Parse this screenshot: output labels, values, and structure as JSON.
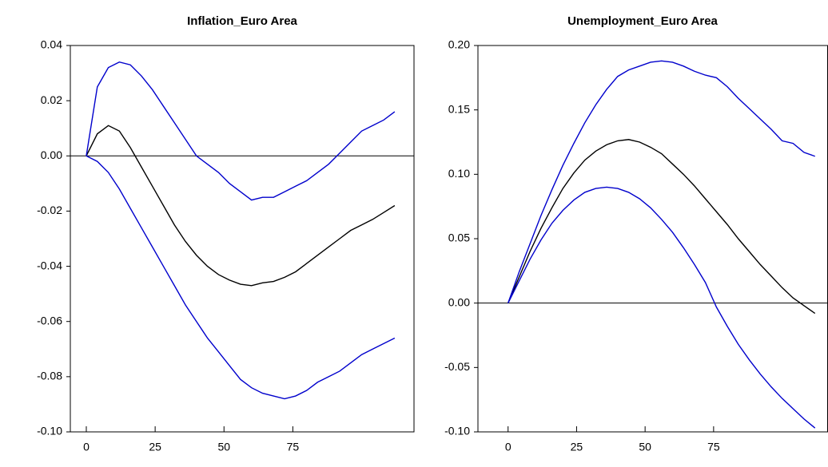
{
  "chart_data": [
    {
      "type": "line",
      "title": "Inflation_Euro Area",
      "x": [
        0,
        4,
        8,
        12,
        16,
        20,
        24,
        28,
        32,
        36,
        40,
        44,
        48,
        52,
        56,
        60,
        64,
        68,
        72,
        76,
        80,
        84,
        88,
        92,
        96,
        100,
        104,
        108,
        112
      ],
      "series": [
        {
          "color": "#000000",
          "values": [
            0,
            0.008,
            0.011,
            0.009,
            0.003,
            -0.004,
            -0.011,
            -0.018,
            -0.025,
            -0.031,
            -0.036,
            -0.04,
            -0.043,
            -0.045,
            -0.0465,
            -0.047,
            -0.046,
            -0.0455,
            -0.044,
            -0.042,
            -0.039,
            -0.036,
            -0.033,
            -0.03,
            -0.027,
            -0.025,
            -0.023,
            -0.0205,
            -0.018
          ]
        },
        {
          "color": "#0000cc",
          "values": [
            0,
            0.025,
            0.032,
            0.034,
            0.033,
            0.029,
            0.024,
            0.018,
            0.012,
            0.006,
            0,
            -0.003,
            -0.006,
            -0.01,
            -0.013,
            -0.016,
            -0.015,
            -0.015,
            -0.013,
            -0.011,
            -0.009,
            -0.006,
            -0.003,
            0.001,
            0.005,
            0.009,
            0.011,
            0.013,
            0.016
          ]
        },
        {
          "color": "#0000cc",
          "values": [
            0,
            -0.002,
            -0.006,
            -0.012,
            -0.019,
            -0.026,
            -0.033,
            -0.04,
            -0.047,
            -0.054,
            -0.06,
            -0.066,
            -0.071,
            -0.076,
            -0.081,
            -0.084,
            -0.086,
            -0.087,
            -0.088,
            -0.087,
            -0.085,
            -0.082,
            -0.08,
            -0.078,
            -0.075,
            -0.072,
            -0.07,
            -0.068,
            -0.066
          ]
        }
      ],
      "hline": 0,
      "xlim": [
        -5.8,
        119
      ],
      "xticks": [
        0,
        25,
        50,
        75
      ],
      "ylim": [
        -0.1,
        0.04
      ],
      "yticks": [
        {
          "value": 0.04,
          "label": "0.04"
        },
        {
          "value": 0.02,
          "label": "0.02"
        },
        {
          "value": 0,
          "label": "0.00"
        },
        {
          "value": -0.02,
          "label": "-0.02"
        },
        {
          "value": -0.04,
          "label": "-0.04"
        },
        {
          "value": -0.06,
          "label": "-0.06"
        },
        {
          "value": -0.08,
          "label": "-0.08"
        },
        {
          "value": -0.1,
          "label": "-0.10"
        }
      ]
    },
    {
      "type": "line",
      "title": "Unemployment_Euro Area",
      "x": [
        0,
        4,
        8,
        12,
        16,
        20,
        24,
        28,
        32,
        36,
        40,
        44,
        48,
        52,
        56,
        60,
        64,
        68,
        72,
        76,
        80,
        84,
        88,
        92,
        96,
        100,
        104,
        108,
        112
      ],
      "series": [
        {
          "color": "#000000",
          "values": [
            0,
            0.02,
            0.04,
            0.058,
            0.074,
            0.089,
            0.101,
            0.111,
            0.118,
            0.123,
            0.126,
            0.127,
            0.125,
            0.121,
            0.116,
            0.108,
            0.1,
            0.091,
            0.081,
            0.071,
            0.061,
            0.05,
            0.04,
            0.03,
            0.021,
            0.012,
            0.004,
            -0.002,
            -0.008
          ]
        },
        {
          "color": "#0000cc",
          "values": [
            0,
            0.024,
            0.046,
            0.068,
            0.088,
            0.107,
            0.124,
            0.14,
            0.154,
            0.166,
            0.176,
            0.181,
            0.184,
            0.187,
            0.188,
            0.187,
            0.184,
            0.18,
            0.177,
            0.175,
            0.168,
            0.159,
            0.151,
            0.143,
            0.135,
            0.126,
            0.124,
            0.117,
            0.114
          ]
        },
        {
          "color": "#0000cc",
          "values": [
            0,
            0.017,
            0.034,
            0.049,
            0.062,
            0.072,
            0.08,
            0.086,
            0.089,
            0.09,
            0.089,
            0.086,
            0.081,
            0.074,
            0.065,
            0.055,
            0.043,
            0.03,
            0.016,
            -0.003,
            -0.018,
            -0.032,
            -0.044,
            -0.055,
            -0.065,
            -0.074,
            -0.082,
            -0.09,
            -0.097
          ]
        }
      ],
      "hline": 0,
      "xlim": [
        -11,
        116.6
      ],
      "xticks": [
        0,
        25,
        50,
        75
      ],
      "ylim": [
        -0.1,
        0.2
      ],
      "yticks": [
        {
          "value": 0.2,
          "label": "0.20"
        },
        {
          "value": 0.15,
          "label": "0.15"
        },
        {
          "value": 0.1,
          "label": "0.10"
        },
        {
          "value": 0.05,
          "label": "0.05"
        },
        {
          "value": 0,
          "label": "0.00"
        },
        {
          "value": -0.05,
          "label": "-0.05"
        },
        {
          "value": -0.1,
          "label": "-0.10"
        }
      ]
    }
  ]
}
